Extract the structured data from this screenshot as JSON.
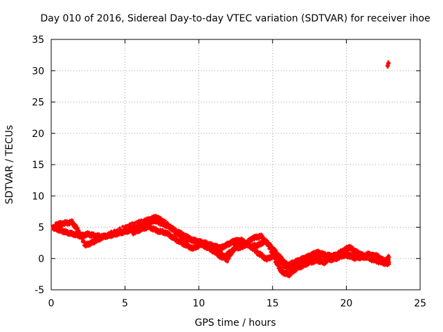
{
  "chart_data": {
    "type": "scatter",
    "title": "Day 010 of 2016, Sidereal Day-to-day VTEC variation (SDTVAR) for receiver ihoe",
    "xlabel": "GPS time / hours",
    "ylabel": "SDTVAR / TECUs",
    "xlim": [
      0,
      25
    ],
    "ylim": [
      -5,
      35
    ],
    "xticks": [
      0,
      5,
      10,
      15,
      20,
      25
    ],
    "yticks": [
      -5,
      0,
      5,
      10,
      15,
      20,
      25,
      30,
      35
    ],
    "grid": true,
    "series": [
      {
        "name": "SDTVAR",
        "color": "#ff0000",
        "marker": "plus",
        "tracks": [
          [
            [
              0.1,
              5.0
            ],
            [
              0.5,
              4.6
            ],
            [
              1.0,
              4.2
            ],
            [
              1.5,
              3.9
            ],
            [
              2.0,
              3.6
            ],
            [
              2.5,
              3.9
            ],
            [
              3.0,
              3.6
            ],
            [
              3.5,
              3.5
            ],
            [
              4.0,
              3.7
            ],
            [
              4.5,
              4.0
            ],
            [
              5.0,
              4.3
            ],
            [
              5.5,
              4.6
            ],
            [
              6.0,
              5.0
            ],
            [
              6.5,
              5.6
            ],
            [
              7.0,
              6.1
            ],
            [
              7.5,
              5.6
            ],
            [
              8.0,
              5.1
            ],
            [
              8.5,
              4.1
            ],
            [
              9.0,
              3.3
            ],
            [
              9.5,
              3.0
            ],
            [
              10.0,
              2.7
            ],
            [
              10.5,
              2.4
            ],
            [
              11.0,
              2.0
            ],
            [
              11.5,
              1.7
            ],
            [
              12.0,
              2.3
            ],
            [
              12.5,
              2.9
            ],
            [
              13.0,
              2.6
            ],
            [
              13.5,
              1.9
            ],
            [
              14.0,
              2.1
            ],
            [
              14.5,
              2.8
            ],
            [
              15.0,
              1.6
            ],
            [
              15.5,
              0.2
            ],
            [
              16.0,
              -1.1
            ],
            [
              16.5,
              -0.6
            ],
            [
              17.0,
              -0.1
            ],
            [
              17.5,
              0.4
            ],
            [
              18.0,
              1.0
            ],
            [
              18.5,
              0.6
            ],
            [
              19.0,
              0.4
            ],
            [
              19.5,
              0.6
            ],
            [
              20.0,
              0.5
            ],
            [
              20.5,
              0.4
            ],
            [
              21.0,
              0.3
            ],
            [
              21.5,
              0.2
            ],
            [
              22.0,
              0.5
            ],
            [
              22.5,
              -0.3
            ],
            [
              22.9,
              -0.6
            ]
          ],
          [
            [
              0.3,
              5.4
            ],
            [
              0.8,
              5.6
            ],
            [
              1.4,
              5.8
            ],
            [
              1.8,
              4.6
            ],
            [
              2.3,
              2.1
            ],
            [
              2.8,
              2.6
            ],
            [
              3.3,
              3.2
            ],
            [
              4.0,
              3.9
            ],
            [
              5.0,
              4.9
            ],
            [
              5.8,
              5.6
            ],
            [
              6.5,
              6.1
            ],
            [
              7.1,
              6.6
            ],
            [
              7.6,
              5.9
            ],
            [
              8.3,
              4.6
            ],
            [
              9.0,
              3.7
            ],
            [
              9.6,
              2.9
            ],
            [
              10.3,
              2.1
            ],
            [
              11.0,
              1.2
            ],
            [
              11.6,
              0.1
            ],
            [
              12.2,
              1.1
            ],
            [
              12.8,
              3.0
            ],
            [
              13.4,
              2.2
            ],
            [
              14.0,
              0.9
            ],
            [
              14.6,
              -0.1
            ],
            [
              15.2,
              0.6
            ],
            [
              15.7,
              -1.1
            ],
            [
              16.3,
              -1.7
            ],
            [
              16.9,
              -1.3
            ],
            [
              17.4,
              -0.7
            ],
            [
              18.0,
              -0.3
            ],
            [
              18.5,
              -0.6
            ],
            [
              19.1,
              0.3
            ],
            [
              19.7,
              1.1
            ],
            [
              20.2,
              1.8
            ],
            [
              20.7,
              1.0
            ],
            [
              21.2,
              0.4
            ],
            [
              21.8,
              -0.2
            ],
            [
              22.4,
              -0.6
            ],
            [
              22.9,
              -0.9
            ]
          ],
          [
            [
              5.5,
              4.1
            ],
            [
              6.0,
              4.6
            ],
            [
              6.6,
              5.1
            ],
            [
              7.2,
              4.4
            ],
            [
              7.8,
              4.1
            ],
            [
              8.4,
              3.1
            ],
            [
              9.0,
              2.3
            ],
            [
              9.6,
              1.6
            ],
            [
              10.2,
              2.3
            ],
            [
              10.8,
              1.9
            ],
            [
              11.4,
              1.2
            ],
            [
              11.9,
              -0.3
            ],
            [
              12.4,
              1.6
            ],
            [
              13.0,
              1.9
            ],
            [
              13.6,
              3.2
            ],
            [
              14.2,
              3.6
            ],
            [
              14.7,
              2.3
            ],
            [
              15.2,
              -0.4
            ],
            [
              15.6,
              -2.1
            ],
            [
              16.1,
              -2.6
            ],
            [
              16.6,
              -1.6
            ],
            [
              17.1,
              -0.9
            ],
            [
              17.7,
              -0.1
            ],
            [
              18.3,
              0.8
            ],
            [
              18.9,
              -0.2
            ],
            [
              19.4,
              0.1
            ],
            [
              20.0,
              0.7
            ],
            [
              20.5,
              0.1
            ],
            [
              21.0,
              0.2
            ],
            [
              21.5,
              0.7
            ],
            [
              22.0,
              0.3
            ],
            [
              22.6,
              -0.5
            ],
            [
              22.9,
              0.2
            ]
          ]
        ],
        "outliers": [
          [
            22.8,
            30.8
          ],
          [
            22.85,
            31.2
          ]
        ]
      }
    ]
  }
}
